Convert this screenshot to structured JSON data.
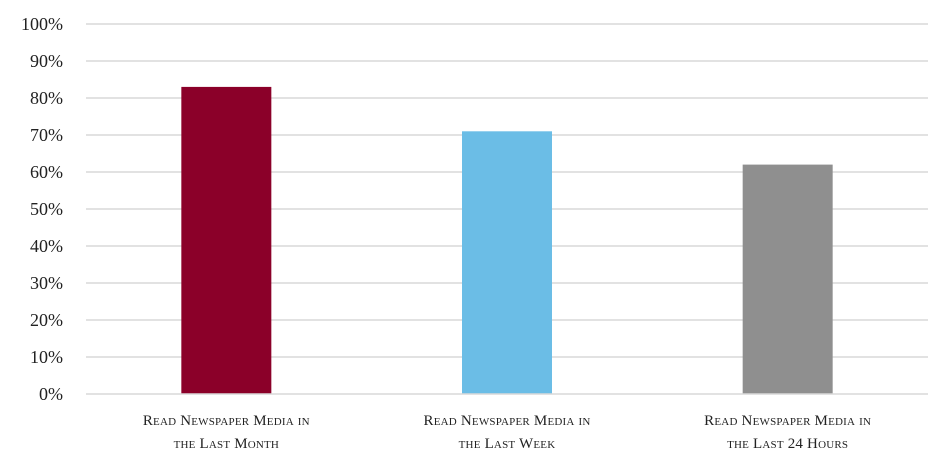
{
  "chart_data": {
    "type": "bar",
    "title": "",
    "xlabel": "",
    "ylabel": "",
    "categories": [
      [
        "Read Newspaper Media in",
        "the Last Month"
      ],
      [
        "Read Newspaper Media in",
        "the Last Week"
      ],
      [
        "Read Newspaper Media in",
        "the Last 24 Hours"
      ]
    ],
    "values": [
      83,
      71,
      62
    ],
    "bar_colors": [
      "#8b0029",
      "#6bbde6",
      "#8f8f8f"
    ],
    "ylim": [
      0,
      100
    ],
    "yticks": [
      0,
      10,
      20,
      30,
      40,
      50,
      60,
      70,
      80,
      90,
      100
    ],
    "ytick_format": "percent",
    "grid": true,
    "legend": "none"
  }
}
